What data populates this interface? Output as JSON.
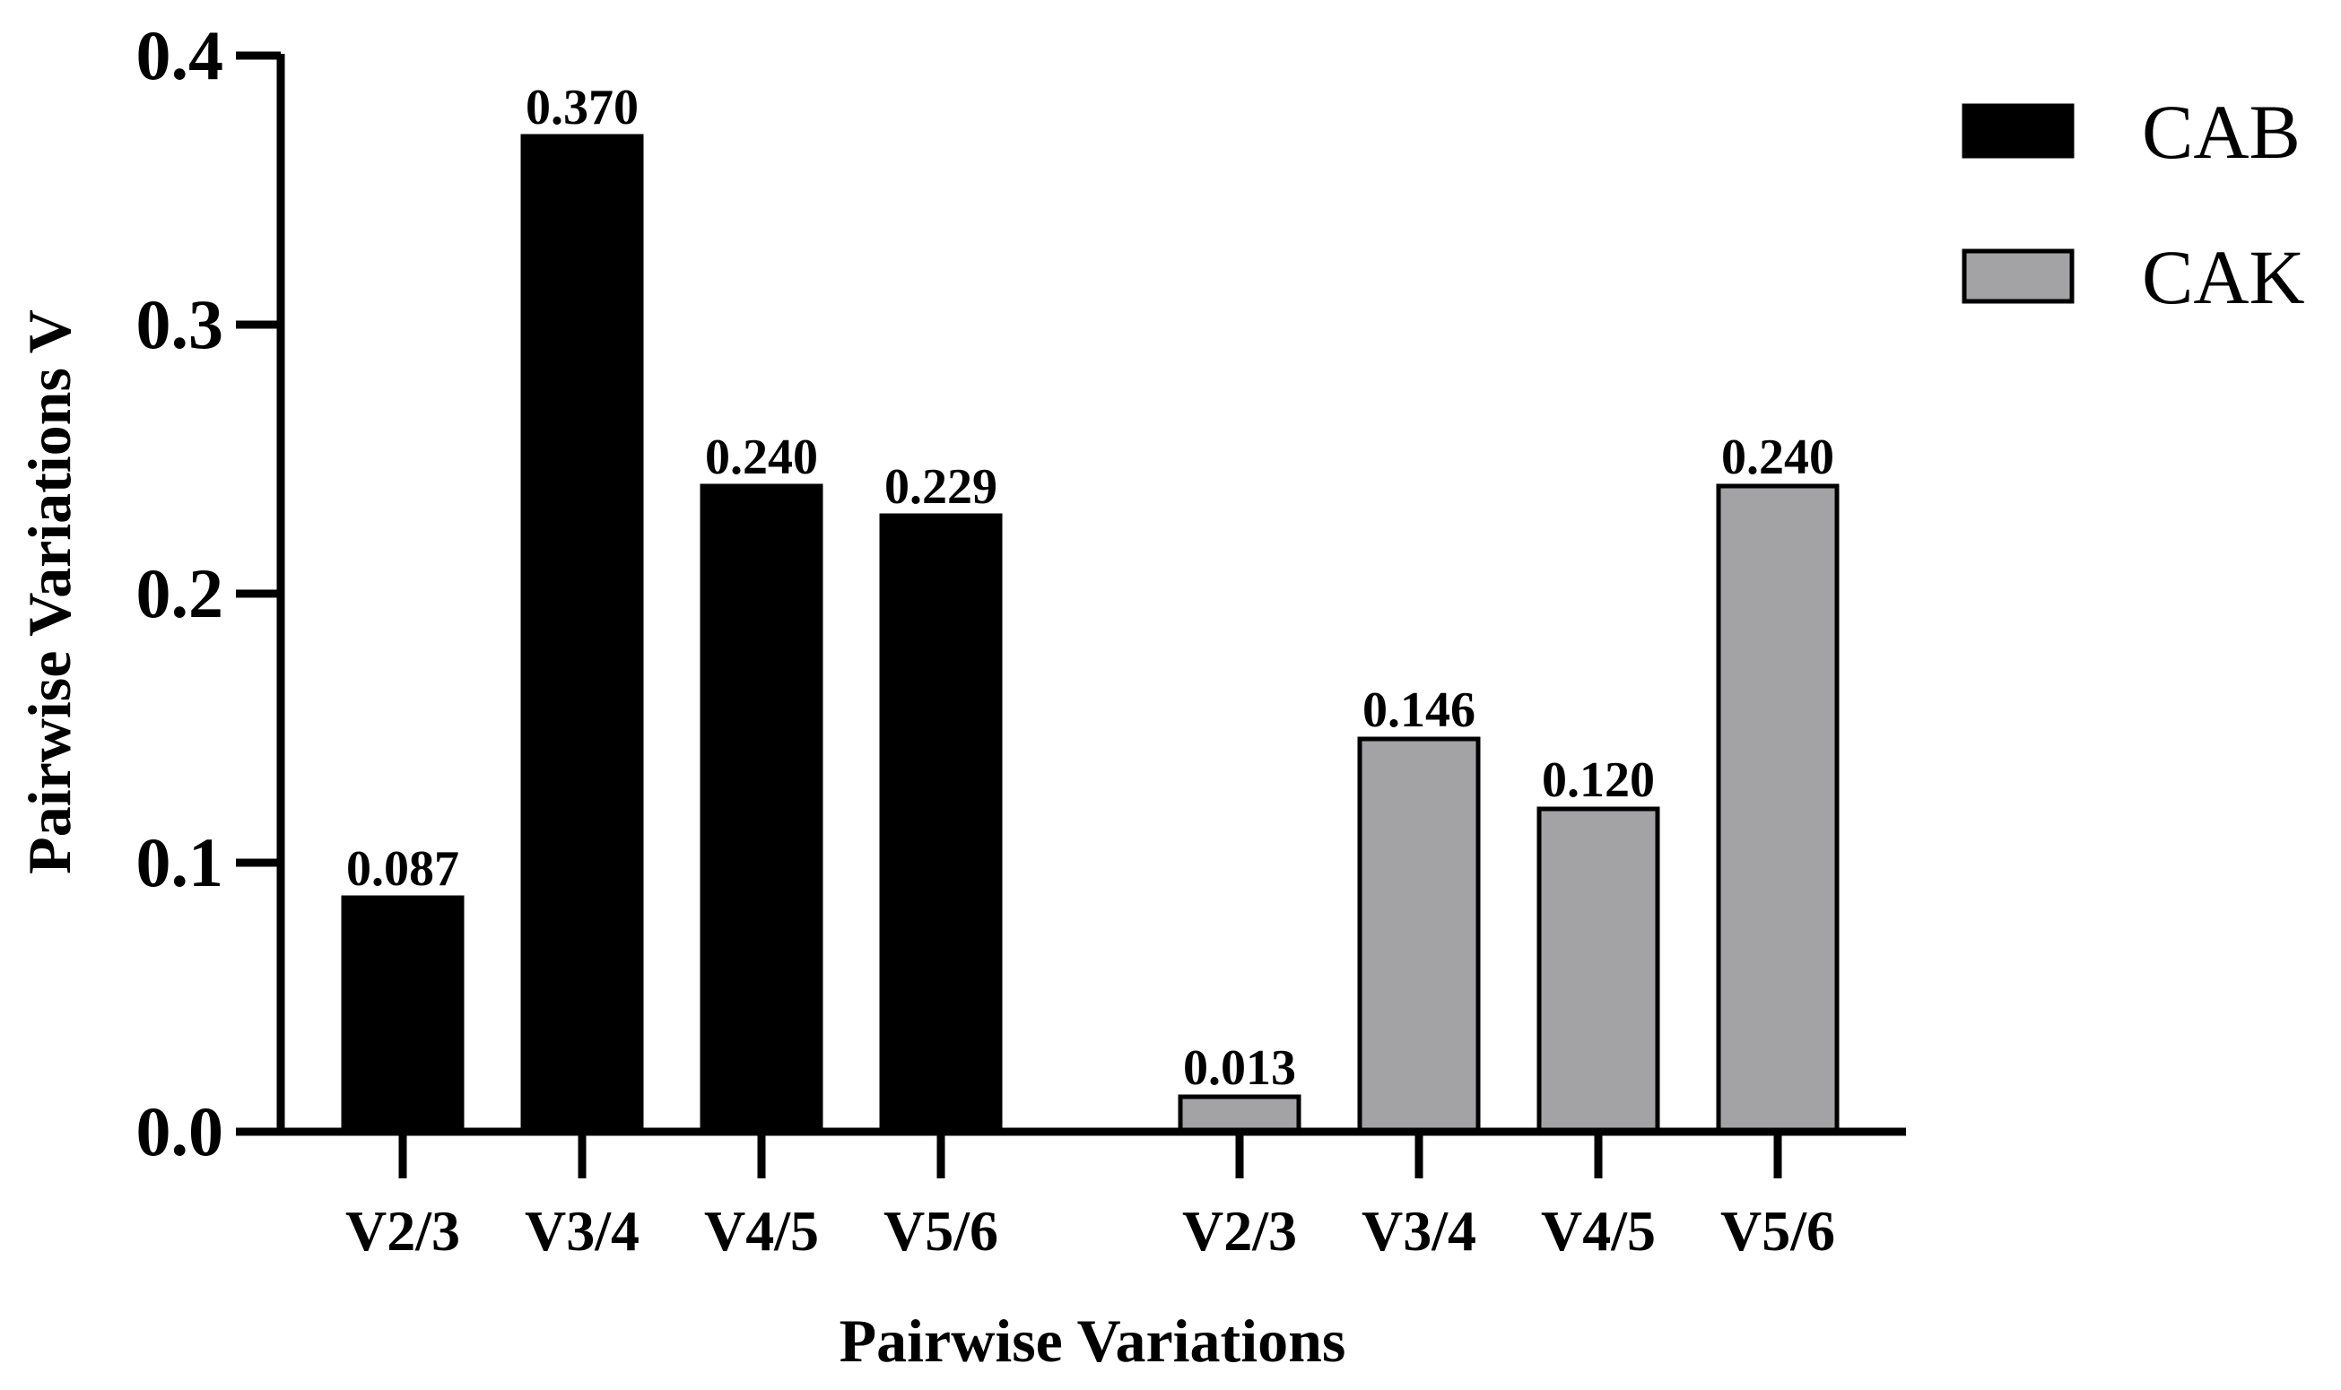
{
  "chart_data": {
    "type": "bar",
    "title": "",
    "xlabel": "Pairwise Variations",
    "ylabel": "Pairwise Variations V",
    "ylim": [
      0,
      0.4
    ],
    "yticks": [
      {
        "value": 0.0,
        "label": "0.0"
      },
      {
        "value": 0.1,
        "label": "0.1"
      },
      {
        "value": 0.2,
        "label": "0.2"
      },
      {
        "value": 0.3,
        "label": "0.3"
      },
      {
        "value": 0.4,
        "label": "0.4"
      }
    ],
    "legend_position": "top-right",
    "series": [
      {
        "name": "CAB",
        "color": "#000000",
        "categories": [
          "V2/3",
          "V3/4",
          "V4/5",
          "V5/6"
        ],
        "values": [
          0.087,
          0.37,
          0.24,
          0.229
        ],
        "labels": [
          "0.087",
          "0.370",
          "0.240",
          "0.229"
        ]
      },
      {
        "name": "CAK",
        "color": "#a3a3a6",
        "categories": [
          "V2/3",
          "V3/4",
          "V4/5",
          "V5/6"
        ],
        "values": [
          0.013,
          0.146,
          0.12,
          0.24
        ],
        "labels": [
          "0.013",
          "0.146",
          "0.120",
          "0.240"
        ]
      }
    ]
  }
}
